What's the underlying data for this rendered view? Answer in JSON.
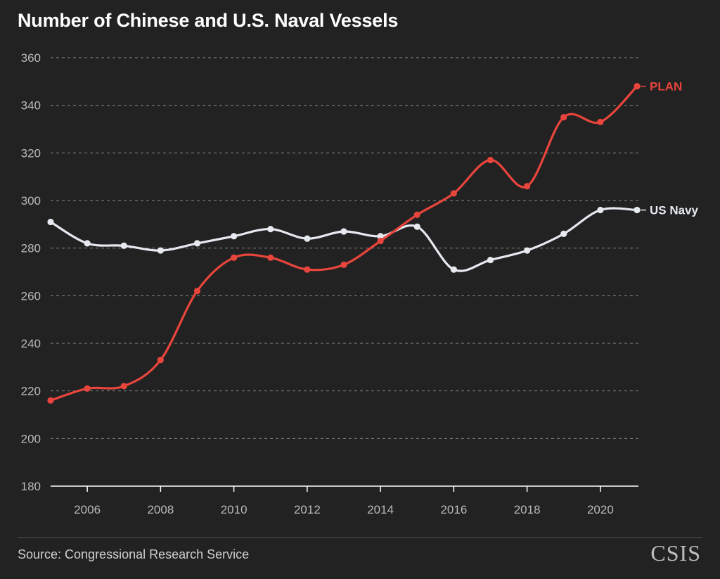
{
  "header": {
    "title": "Number of Chinese and U.S. Naval Vessels"
  },
  "footer": {
    "source": "Source: Congressional Research Service",
    "logo_text": "CSIS"
  },
  "colors": {
    "background": "#222222",
    "plan": "#e8453c",
    "us_navy": "#e6e9ef",
    "grid": "#8a8a8a",
    "axis_text": "#b9b9b9"
  },
  "chart_data": {
    "type": "line",
    "title": "Number of Chinese and U.S. Naval Vessels",
    "xlabel": "",
    "ylabel": "",
    "x": [
      2005,
      2006,
      2007,
      2008,
      2009,
      2010,
      2011,
      2012,
      2013,
      2014,
      2015,
      2016,
      2017,
      2018,
      2019,
      2020,
      2021
    ],
    "xlim": [
      2005,
      2021
    ],
    "ylim": [
      180,
      360
    ],
    "x_ticks": [
      "2006",
      "2008",
      "2010",
      "2012",
      "2014",
      "2016",
      "2018",
      "2020"
    ],
    "y_ticks": [
      "180",
      "200",
      "220",
      "240",
      "260",
      "280",
      "300",
      "320",
      "340",
      "360"
    ],
    "grid": "horizontal dashed",
    "legend": "direct labels at line ends",
    "series": [
      {
        "name": "PLAN",
        "color": "#e8453c",
        "values": [
          216,
          221,
          222,
          233,
          262,
          276,
          276,
          271,
          273,
          283,
          294,
          303,
          317,
          306,
          335,
          333,
          348
        ]
      },
      {
        "name": "US Navy",
        "color": "#e6e9ef",
        "values": [
          291,
          282,
          281,
          279,
          282,
          285,
          288,
          284,
          287,
          285,
          289,
          271,
          275,
          279,
          286,
          296,
          296
        ]
      }
    ]
  }
}
